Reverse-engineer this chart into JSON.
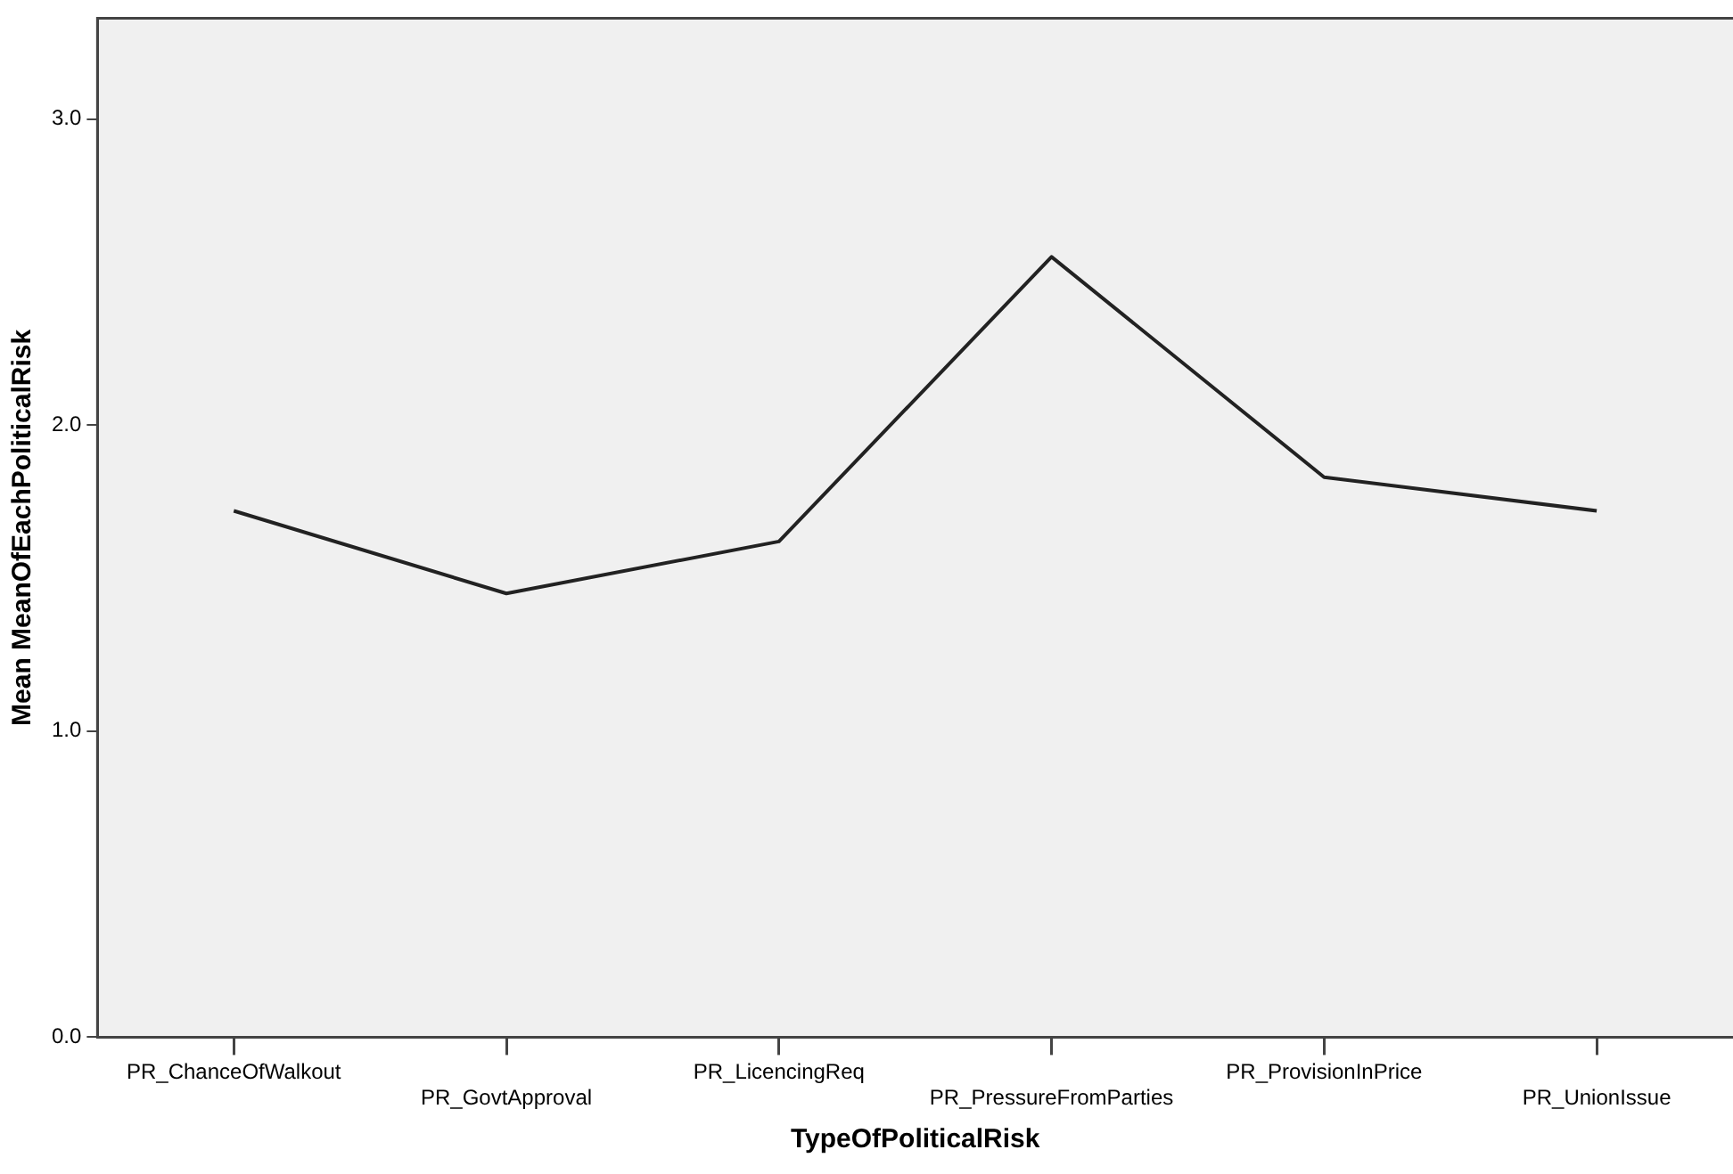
{
  "chart_data": {
    "type": "line",
    "xlabel": "TypeOfPoliticalRisk",
    "ylabel": "Mean MeanOfEachPoliticalRisk",
    "categories": [
      "PR_ChanceOfWalkout",
      "PR_GovtApproval",
      "PR_LicencingReq",
      "PR_PressureFromParties",
      "PR_ProvisionInPrice",
      "PR_UnionIssue"
    ],
    "series": [
      {
        "color": "#222222",
        "values": [
          1.72,
          1.45,
          1.62,
          2.55,
          1.83,
          1.72
        ]
      }
    ],
    "ylim": [
      0,
      3.33
    ],
    "yticks": [
      {
        "value": 0,
        "label": "0.0"
      },
      {
        "value": 1,
        "label": "1.0"
      },
      {
        "value": 2,
        "label": "2.0"
      },
      {
        "value": 3,
        "label": "3.0"
      }
    ],
    "grid": false,
    "legend": false,
    "marker": "none",
    "line_style": "solid"
  }
}
